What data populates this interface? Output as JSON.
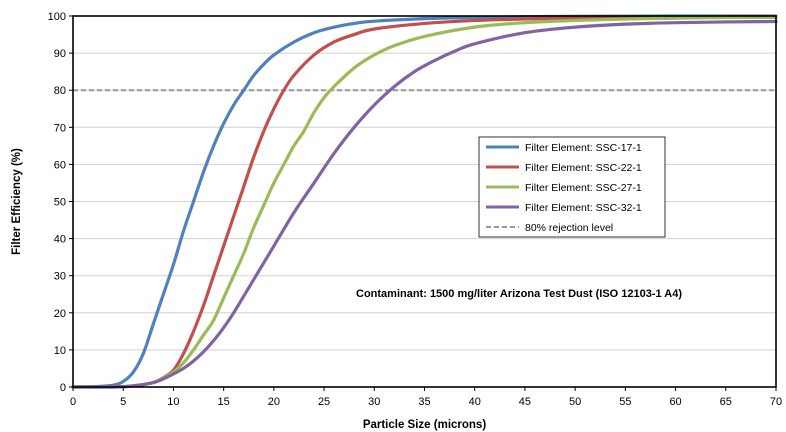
{
  "chart_data": {
    "type": "line",
    "title": "",
    "xlabel": "Particle Size (microns)",
    "ylabel": "Filter Efficiency (%)",
    "xlim": [
      0,
      70
    ],
    "ylim": [
      0,
      100
    ],
    "x_ticks": [
      0,
      5,
      10,
      15,
      20,
      25,
      30,
      35,
      40,
      45,
      50,
      55,
      60,
      65,
      70
    ],
    "y_ticks": [
      0,
      10,
      20,
      30,
      40,
      50,
      60,
      70,
      80,
      90,
      100
    ],
    "grid": "horizontal",
    "legend_position": "right-middle",
    "annotation": "Contaminant: 1500 mg/liter Arizona Test Dust (ISO 12103-1 A4)",
    "reference_line": {
      "name": "80% rejection level",
      "y": 80,
      "color": "#999999",
      "style": "dashed"
    },
    "series": [
      {
        "name": "Filter Element: SSC-17-1",
        "color": "#4F81BD",
        "x": [
          0,
          2,
          4,
          5,
          6,
          7,
          8,
          9,
          10,
          11,
          12,
          13,
          14,
          15,
          16,
          17,
          18,
          19,
          20,
          22,
          24,
          26,
          28,
          30,
          35,
          40,
          45,
          50,
          55,
          60,
          65,
          70
        ],
        "y": [
          0,
          0.1,
          0.5,
          1.5,
          4,
          9,
          17,
          25,
          33,
          42,
          50,
          58,
          65,
          71,
          76,
          80,
          84,
          87,
          89.5,
          93,
          95.5,
          97,
          98,
          98.6,
          99.3,
          99.6,
          99.8,
          99.9,
          99.95,
          100,
          100,
          100
        ]
      },
      {
        "name": "Filter Element: SSC-22-1",
        "color": "#C0504D",
        "x": [
          0,
          4,
          6,
          8,
          9,
          10,
          11,
          12,
          13,
          14,
          15,
          16,
          17,
          18,
          19,
          20,
          21,
          22,
          24,
          26,
          28,
          30,
          35,
          40,
          45,
          50,
          55,
          60,
          65,
          70
        ],
        "y": [
          0,
          0,
          0.3,
          1.2,
          2.5,
          4.5,
          9,
          15,
          22,
          30,
          38,
          46,
          54,
          62,
          69,
          75,
          80,
          84,
          89.5,
          93,
          95,
          96.5,
          98,
          98.8,
          99.2,
          99.5,
          99.6,
          99.7,
          99.8,
          99.8
        ]
      },
      {
        "name": "Filter Element: SSC-27-1",
        "color": "#9BBB59",
        "x": [
          0,
          4,
          6,
          8,
          9,
          10,
          11,
          12,
          13,
          14,
          15,
          16,
          17,
          18,
          19,
          20,
          21,
          22,
          23,
          24,
          25,
          26,
          28,
          30,
          32,
          35,
          40,
          45,
          50,
          55,
          60,
          65,
          70
        ],
        "y": [
          0,
          0,
          0.3,
          1.2,
          2.3,
          4,
          6.5,
          10,
          14,
          18,
          24,
          30,
          36,
          43,
          49,
          55,
          60,
          65,
          69,
          74,
          78,
          81,
          86,
          89.5,
          92,
          94.5,
          97,
          98.2,
          98.8,
          99.2,
          99.4,
          99.6,
          99.6
        ]
      },
      {
        "name": "Filter Element: SSC-32-1",
        "color": "#8064A2",
        "x": [
          0,
          4,
          6,
          8,
          9,
          10,
          11,
          12,
          13,
          14,
          15,
          16,
          18,
          20,
          22,
          24,
          26,
          28,
          30,
          32,
          34,
          36,
          38,
          40,
          45,
          50,
          55,
          60,
          65,
          70
        ],
        "y": [
          0,
          0,
          0.3,
          1.2,
          2.2,
          3.5,
          5,
          7,
          9.5,
          12.5,
          16,
          20,
          29,
          38,
          47,
          55,
          63,
          70,
          76,
          81,
          85,
          88,
          90.5,
          92.5,
          95.5,
          97,
          97.8,
          98.2,
          98.4,
          98.5
        ]
      }
    ]
  }
}
